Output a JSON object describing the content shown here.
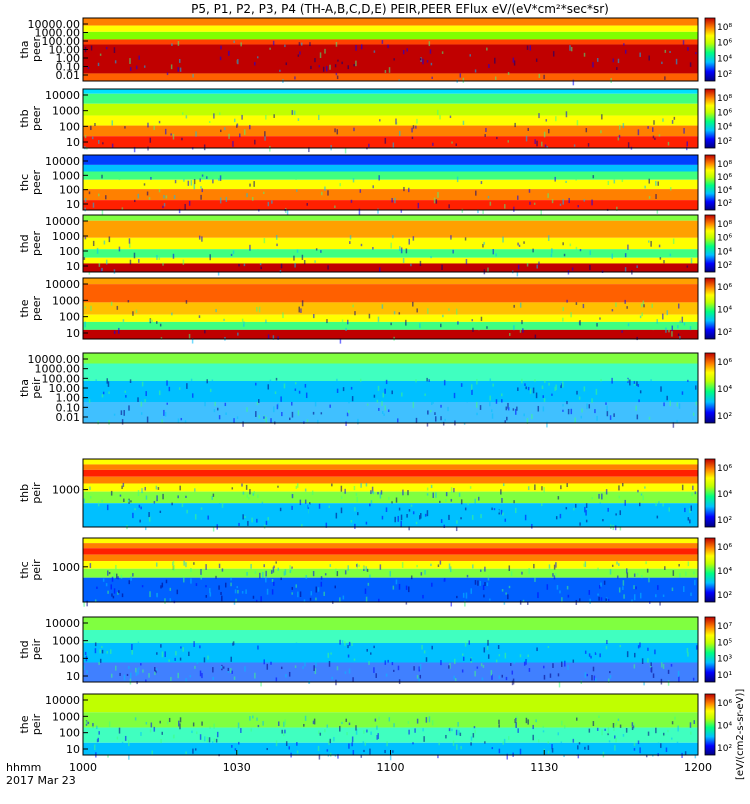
{
  "title": "P5, P1, P2, P3, P4 (TH-A,B,C,D,E) PEIR,PEER EFlux eV/(eV*cm²*sec*sr)",
  "x_axis": {
    "label": "hhmm",
    "date": "2017 Mar 23",
    "ticks": [
      "1000",
      "1030",
      "1100",
      "1130",
      "1200"
    ]
  },
  "colorbar_label": "[eV/(cm2-s-sr-eV)]",
  "chart_data": [
    {
      "type": "heatmap",
      "name": "tha peer",
      "ylabel_1": "tha",
      "ylabel_2": "peer",
      "y_scale": "log",
      "y_ticks": [
        "10000.00",
        "1000.00",
        "100.00",
        "10.00",
        "1.00",
        "0.10",
        "0.01"
      ],
      "colorbar_ticks": [
        "10⁸",
        "10⁶",
        "10⁴",
        "10²"
      ]
    },
    {
      "type": "heatmap",
      "name": "thb peer",
      "ylabel_1": "thb",
      "ylabel_2": "peer",
      "y_scale": "log",
      "y_ticks": [
        "10000",
        "1000",
        "100",
        "10"
      ],
      "colorbar_ticks": [
        "10⁸",
        "10⁶",
        "10⁴",
        "10²"
      ]
    },
    {
      "type": "heatmap",
      "name": "thc peer",
      "ylabel_1": "thc",
      "ylabel_2": "peer",
      "y_scale": "log",
      "y_ticks": [
        "10000",
        "1000",
        "100",
        "10"
      ],
      "colorbar_ticks": [
        "10⁸",
        "10⁶",
        "10⁴",
        "10²"
      ]
    },
    {
      "type": "heatmap",
      "name": "thd peer",
      "ylabel_1": "thd",
      "ylabel_2": "peer",
      "y_scale": "log",
      "y_ticks": [
        "10000",
        "1000",
        "100",
        "10"
      ],
      "colorbar_ticks": [
        "10⁸",
        "10⁶",
        "10⁴",
        "10²"
      ]
    },
    {
      "type": "heatmap",
      "name": "the peer",
      "ylabel_1": "the",
      "ylabel_2": "peer",
      "y_scale": "log",
      "y_ticks": [
        "10000",
        "1000",
        "100",
        "10"
      ],
      "colorbar_ticks": [
        "10⁶",
        "10⁴",
        "10²"
      ]
    },
    {
      "type": "heatmap",
      "name": "tha peir",
      "ylabel_1": "tha",
      "ylabel_2": "peir",
      "y_scale": "log",
      "y_ticks": [
        "10000.00",
        "1000.00",
        "100.00",
        "10.00",
        "1.00",
        "0.10",
        "0.01"
      ],
      "colorbar_ticks": [
        "10⁶",
        "10⁴",
        "10²"
      ]
    },
    {
      "type": "heatmap",
      "name": "thb peir",
      "ylabel_1": "thb",
      "ylabel_2": "peir",
      "y_scale": "log",
      "y_ticks": [
        "1000"
      ],
      "colorbar_ticks": [
        "10⁶",
        "10⁴",
        "10²"
      ]
    },
    {
      "type": "heatmap",
      "name": "thc peir",
      "ylabel_1": "thc",
      "ylabel_2": "peir",
      "y_scale": "log",
      "y_ticks": [
        "1000"
      ],
      "colorbar_ticks": [
        "10⁶",
        "10⁴",
        "10²"
      ]
    },
    {
      "type": "heatmap",
      "name": "thd peir",
      "ylabel_1": "thd",
      "ylabel_2": "peir",
      "y_scale": "log",
      "y_ticks": [
        "10000",
        "1000",
        "100",
        "10"
      ],
      "colorbar_ticks": [
        "10⁷",
        "10⁵",
        "10³",
        "10¹"
      ]
    },
    {
      "type": "heatmap",
      "name": "the peir",
      "ylabel_1": "the",
      "ylabel_2": "peir",
      "y_scale": "log",
      "y_ticks": [
        "10000",
        "1000",
        "100",
        "10"
      ],
      "colorbar_ticks": [
        "10⁶",
        "10⁴",
        "10²"
      ]
    }
  ]
}
